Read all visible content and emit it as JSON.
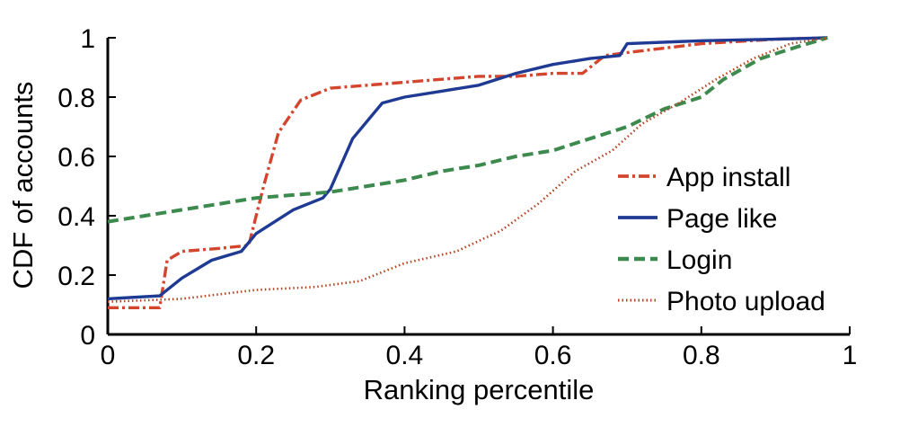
{
  "chart_data": {
    "type": "line",
    "title": "",
    "xlabel": "Ranking percentile",
    "ylabel": "CDF of accounts",
    "xlim": [
      0,
      1
    ],
    "ylim": [
      0,
      1
    ],
    "x_ticks": [
      0,
      0.2,
      0.4,
      0.6,
      0.8,
      1
    ],
    "y_ticks": [
      0,
      0.2,
      0.4,
      0.6,
      0.8,
      1
    ],
    "x_tick_labels": [
      "0",
      "0.2",
      "0.4",
      "0.6",
      "0.8",
      "1"
    ],
    "y_tick_labels": [
      "0",
      "0.2",
      "0.4",
      "0.6",
      "0.8",
      "1"
    ],
    "grid": false,
    "legend_position": "right",
    "series": [
      {
        "name": "App install",
        "color": "#d4452e",
        "dash": "dashdot",
        "points": [
          [
            0,
            0.09
          ],
          [
            0.07,
            0.09
          ],
          [
            0.08,
            0.25
          ],
          [
            0.1,
            0.28
          ],
          [
            0.15,
            0.29
          ],
          [
            0.19,
            0.3
          ],
          [
            0.21,
            0.5
          ],
          [
            0.23,
            0.68
          ],
          [
            0.26,
            0.79
          ],
          [
            0.3,
            0.83
          ],
          [
            0.35,
            0.84
          ],
          [
            0.4,
            0.85
          ],
          [
            0.45,
            0.86
          ],
          [
            0.5,
            0.87
          ],
          [
            0.55,
            0.87
          ],
          [
            0.6,
            0.88
          ],
          [
            0.64,
            0.88
          ],
          [
            0.67,
            0.94
          ],
          [
            0.7,
            0.95
          ],
          [
            0.8,
            0.98
          ],
          [
            0.9,
            0.995
          ],
          [
            0.97,
            1.0
          ]
        ]
      },
      {
        "name": "Page like",
        "color": "#1f3a93",
        "dash": "solid",
        "points": [
          [
            0,
            0.12
          ],
          [
            0.07,
            0.13
          ],
          [
            0.1,
            0.19
          ],
          [
            0.14,
            0.25
          ],
          [
            0.18,
            0.28
          ],
          [
            0.2,
            0.34
          ],
          [
            0.25,
            0.42
          ],
          [
            0.29,
            0.46
          ],
          [
            0.3,
            0.49
          ],
          [
            0.33,
            0.66
          ],
          [
            0.37,
            0.78
          ],
          [
            0.4,
            0.8
          ],
          [
            0.45,
            0.82
          ],
          [
            0.5,
            0.84
          ],
          [
            0.55,
            0.88
          ],
          [
            0.6,
            0.91
          ],
          [
            0.65,
            0.93
          ],
          [
            0.69,
            0.94
          ],
          [
            0.7,
            0.98
          ],
          [
            0.8,
            0.99
          ],
          [
            0.9,
            0.995
          ],
          [
            0.97,
            1.0
          ]
        ]
      },
      {
        "name": "Login",
        "color": "#3d8a4f",
        "dash": "dashed",
        "points": [
          [
            0,
            0.38
          ],
          [
            0.05,
            0.4
          ],
          [
            0.1,
            0.42
          ],
          [
            0.15,
            0.44
          ],
          [
            0.2,
            0.46
          ],
          [
            0.25,
            0.47
          ],
          [
            0.3,
            0.48
          ],
          [
            0.35,
            0.5
          ],
          [
            0.4,
            0.52
          ],
          [
            0.45,
            0.55
          ],
          [
            0.5,
            0.57
          ],
          [
            0.55,
            0.6
          ],
          [
            0.6,
            0.62
          ],
          [
            0.65,
            0.66
          ],
          [
            0.7,
            0.7
          ],
          [
            0.75,
            0.76
          ],
          [
            0.8,
            0.8
          ],
          [
            0.83,
            0.86
          ],
          [
            0.88,
            0.93
          ],
          [
            0.93,
            0.97
          ],
          [
            0.97,
            1.0
          ]
        ]
      },
      {
        "name": "Photo upload",
        "color": "#b5421f",
        "dash": "dotted",
        "points": [
          [
            0,
            0.11
          ],
          [
            0.1,
            0.12
          ],
          [
            0.2,
            0.15
          ],
          [
            0.28,
            0.16
          ],
          [
            0.34,
            0.18
          ],
          [
            0.4,
            0.24
          ],
          [
            0.47,
            0.28
          ],
          [
            0.53,
            0.35
          ],
          [
            0.58,
            0.44
          ],
          [
            0.63,
            0.55
          ],
          [
            0.68,
            0.62
          ],
          [
            0.72,
            0.71
          ],
          [
            0.77,
            0.78
          ],
          [
            0.82,
            0.86
          ],
          [
            0.87,
            0.93
          ],
          [
            0.92,
            0.98
          ],
          [
            0.97,
            1.0
          ]
        ]
      }
    ]
  }
}
